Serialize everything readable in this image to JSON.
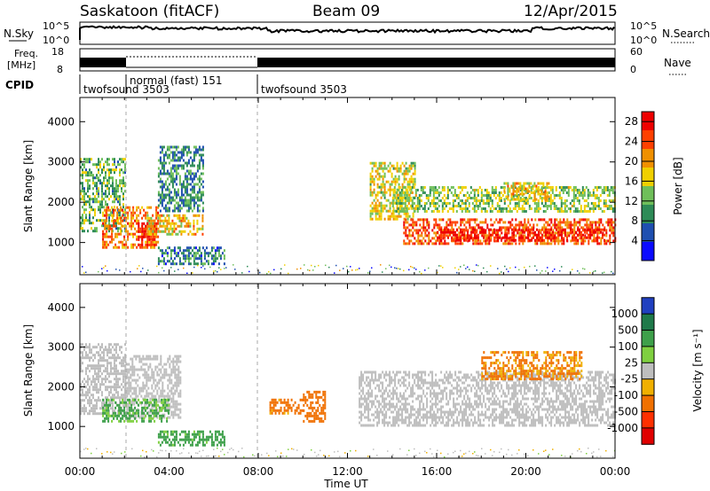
{
  "header": {
    "title_left": "Saskatoon (fitACF)",
    "title_center": "Beam 09",
    "title_right": "12/Apr/2015"
  },
  "strips": {
    "nsky_label": "N.Sky",
    "nsky_ticks": [
      "10^5",
      "10^0"
    ],
    "nsearch_label": "N.Search",
    "nsearch_ticks": [
      "10^5",
      "10^0"
    ],
    "freq_label_1": "Freq.",
    "freq_label_2": "[MHz]",
    "freq_ticks": [
      "18",
      "8"
    ],
    "nave_label": "Nave",
    "nave_ticks": [
      "60",
      "0"
    ],
    "cpid_label": "CPID",
    "cpid_segments": [
      {
        "label": "twofsound 3503",
        "start_hour": 0
      },
      {
        "label": "normal (fast) 151",
        "start_hour": 2
      },
      {
        "label": "twofsound 3503",
        "start_hour": 8
      }
    ]
  },
  "chart_data": [
    {
      "type": "heatmap",
      "panel": "power",
      "ylabel": "Slant Range [km]",
      "y_ticks": [
        1000,
        2000,
        3000,
        4000
      ],
      "ylim": [
        200,
        4600
      ],
      "xlim_hours": [
        0,
        24
      ],
      "colorbar": {
        "label": "Power [dB]",
        "ticks": [
          4,
          8,
          12,
          16,
          20,
          24,
          28
        ],
        "range": [
          0,
          30
        ],
        "colors": [
          "#0a0aff",
          "#1f4fb0",
          "#2e8b57",
          "#6fbf5a",
          "#f0d000",
          "#f09000",
          "#ff4000",
          "#ee0000"
        ]
      },
      "regions": [
        {
          "t0": 0.0,
          "t1": 2.0,
          "r0": 1300,
          "r1": 3100,
          "power": 12
        },
        {
          "t0": 1.0,
          "t1": 3.5,
          "r0": 900,
          "r1": 1900,
          "power": 22
        },
        {
          "t0": 2.6,
          "t1": 3.4,
          "r0": 950,
          "r1": 1500,
          "power": 28
        },
        {
          "t0": 3.0,
          "t1": 5.5,
          "r0": 1200,
          "r1": 1700,
          "power": 18
        },
        {
          "t0": 3.5,
          "t1": 5.5,
          "r0": 1800,
          "r1": 3400,
          "power": 9
        },
        {
          "t0": 3.5,
          "t1": 6.5,
          "r0": 500,
          "r1": 900,
          "power": 8
        },
        {
          "t0": 13.0,
          "t1": 15.0,
          "r0": 1600,
          "r1": 3000,
          "power": 16
        },
        {
          "t0": 14.0,
          "t1": 24.0,
          "r0": 1800,
          "r1": 2400,
          "power": 14
        },
        {
          "t0": 14.5,
          "t1": 24.0,
          "r0": 1000,
          "r1": 1600,
          "power": 24
        },
        {
          "t0": 16.0,
          "t1": 23.5,
          "r0": 1050,
          "r1": 1350,
          "power": 28
        },
        {
          "t0": 19.0,
          "t1": 21.0,
          "r0": 2100,
          "r1": 2500,
          "power": 18
        }
      ]
    },
    {
      "type": "heatmap",
      "panel": "velocity",
      "ylabel": "Slant Range [km]",
      "y_ticks": [
        1000,
        2000,
        3000,
        4000
      ],
      "ylim": [
        200,
        4600
      ],
      "xlabel": "Time UT",
      "x_tick_labels": [
        "00:00",
        "04:00",
        "08:00",
        "12:00",
        "16:00",
        "20:00",
        "00:00"
      ],
      "xlim_hours": [
        0,
        24
      ],
      "colorbar": {
        "label": "Velocity [m s⁻¹]",
        "ticks": [
          1000,
          500,
          100,
          25,
          -25,
          -100,
          -500,
          -1000
        ],
        "colors": [
          "#2040c0",
          "#1f7a4a",
          "#3ea04a",
          "#7fd040",
          "#bebebe",
          "#f0b000",
          "#f07000",
          "#ff3000",
          "#e00000"
        ]
      },
      "regions": [
        {
          "t0": 0.0,
          "t1": 2.0,
          "r0": 1300,
          "r1": 3100,
          "velocity": 0
        },
        {
          "t0": 2.0,
          "t1": 4.5,
          "r0": 1200,
          "r1": 2800,
          "velocity": 0
        },
        {
          "t0": 1.0,
          "t1": 4.0,
          "r0": 1100,
          "r1": 1700,
          "velocity": 150
        },
        {
          "t0": 3.5,
          "t1": 6.5,
          "r0": 500,
          "r1": 900,
          "velocity": 200
        },
        {
          "t0": 8.5,
          "t1": 10.0,
          "r0": 1300,
          "r1": 1700,
          "velocity": -200
        },
        {
          "t0": 10.0,
          "t1": 11.0,
          "r0": 1100,
          "r1": 1900,
          "velocity": -300
        },
        {
          "t0": 12.5,
          "t1": 24.0,
          "r0": 1000,
          "r1": 2400,
          "velocity": 0
        },
        {
          "t0": 18.0,
          "t1": 22.5,
          "r0": 2200,
          "r1": 2900,
          "velocity": -150
        }
      ]
    }
  ]
}
